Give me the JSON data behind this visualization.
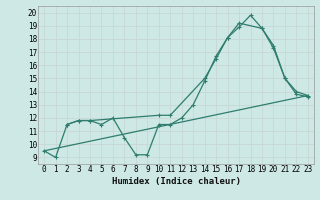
{
  "xlabel": "Humidex (Indice chaleur)",
  "bg_color": "#cde8e5",
  "grid_color": "#b0d4d0",
  "line_color": "#2e7d6e",
  "xlim": [
    -0.5,
    23.5
  ],
  "ylim": [
    8.5,
    20.5
  ],
  "xticks": [
    0,
    1,
    2,
    3,
    4,
    5,
    6,
    7,
    8,
    9,
    10,
    11,
    12,
    13,
    14,
    15,
    16,
    17,
    18,
    19,
    20,
    21,
    22,
    23
  ],
  "yticks": [
    9,
    10,
    11,
    12,
    13,
    14,
    15,
    16,
    17,
    18,
    19,
    20
  ],
  "line1_x": [
    0,
    1,
    2,
    3,
    4,
    5,
    6,
    7,
    8,
    9,
    10,
    11,
    12,
    13,
    14,
    15,
    16,
    17,
    18,
    19,
    20,
    21,
    22,
    23
  ],
  "line1_y": [
    9.5,
    9.0,
    11.5,
    11.8,
    11.8,
    11.5,
    12.0,
    10.5,
    9.2,
    9.2,
    11.5,
    11.5,
    12.0,
    13.0,
    14.8,
    16.7,
    18.1,
    18.9,
    19.8,
    18.8,
    17.5,
    15.0,
    13.8,
    13.6
  ],
  "line2_x": [
    2,
    3,
    4,
    10,
    11,
    14,
    15,
    16,
    17,
    19,
    20,
    21,
    22,
    23
  ],
  "line2_y": [
    11.5,
    11.8,
    11.8,
    12.2,
    12.2,
    15.0,
    16.5,
    18.1,
    19.2,
    18.8,
    17.3,
    15.0,
    14.0,
    13.7
  ],
  "line3_x": [
    0,
    23
  ],
  "line3_y": [
    9.5,
    13.7
  ]
}
